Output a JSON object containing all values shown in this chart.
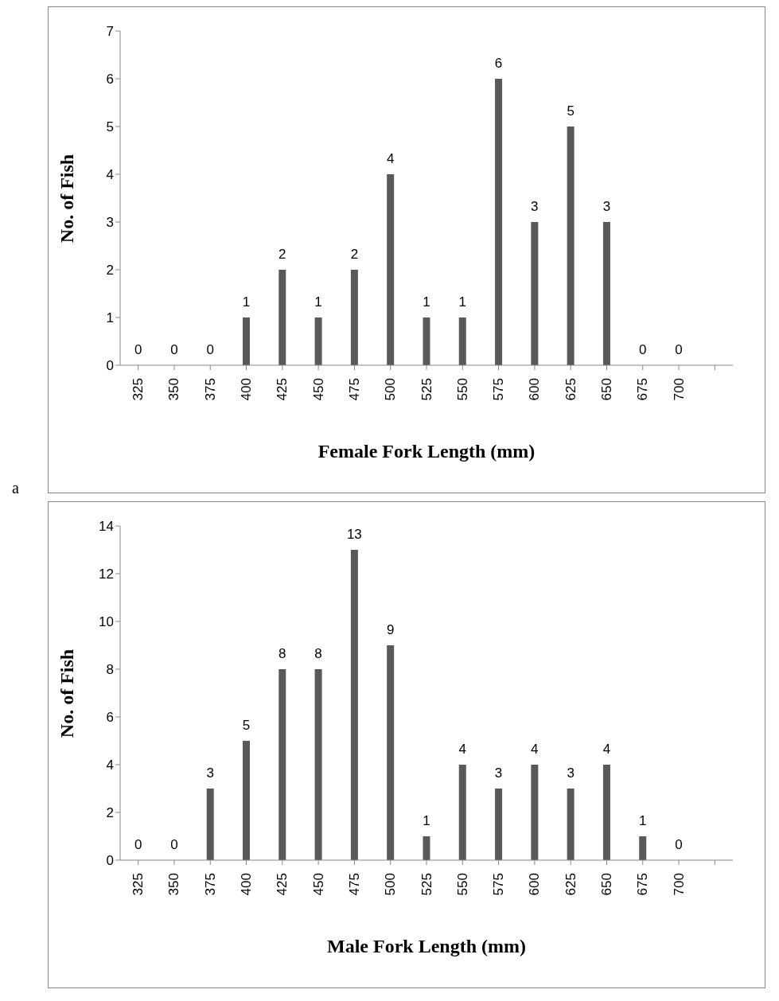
{
  "chart_data": [
    {
      "type": "bar",
      "xlabel": "Female Fork Length (mm)",
      "ylabel": "No. of Fish",
      "categories": [
        "325",
        "350",
        "375",
        "400",
        "425",
        "450",
        "475",
        "500",
        "525",
        "550",
        "575",
        "600",
        "625",
        "650",
        "675",
        "700",
        null
      ],
      "values": [
        0,
        0,
        0,
        1,
        2,
        1,
        2,
        4,
        1,
        1,
        6,
        3,
        5,
        3,
        0,
        0,
        null
      ],
      "color": "#595959",
      "ylim": [
        0,
        7
      ],
      "yticks": [
        0,
        1,
        2,
        3,
        4,
        5,
        6,
        7
      ],
      "data_labels": true,
      "grid": false,
      "legend": false,
      "annotations": [
        "a"
      ]
    },
    {
      "type": "bar",
      "xlabel": "Male Fork Length (mm)",
      "ylabel": "No. of Fish",
      "categories": [
        "325",
        "350",
        "375",
        "400",
        "425",
        "450",
        "475",
        "500",
        "525",
        "550",
        "575",
        "600",
        "625",
        "650",
        "675",
        "700",
        null
      ],
      "values": [
        0,
        0,
        3,
        5,
        8,
        8,
        13,
        9,
        1,
        4,
        3,
        4,
        3,
        4,
        1,
        0,
        null
      ],
      "color": "#595959",
      "ylim": [
        0,
        14
      ],
      "yticks": [
        0,
        2,
        4,
        6,
        8,
        10,
        12,
        14
      ],
      "data_labels": true,
      "grid": false,
      "legend": false
    }
  ]
}
